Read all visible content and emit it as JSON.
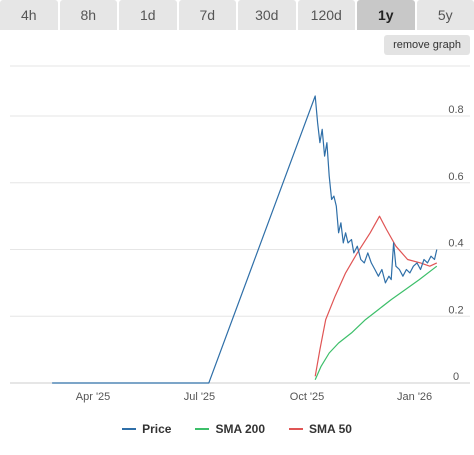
{
  "tabs": [
    {
      "label": "4h",
      "active": false
    },
    {
      "label": "8h",
      "active": false
    },
    {
      "label": "1d",
      "active": false
    },
    {
      "label": "7d",
      "active": false
    },
    {
      "label": "30d",
      "active": false
    },
    {
      "label": "120d",
      "active": false
    },
    {
      "label": "1y",
      "active": true
    },
    {
      "label": "5y",
      "active": false
    }
  ],
  "remove_graph_label": "remove graph",
  "chart_data": {
    "type": "line",
    "xlim": [
      "2025-01-20",
      "2026-01-21"
    ],
    "ylim": [
      0,
      0.95
    ],
    "x_ticks": [
      {
        "label": "Apr '25",
        "date": "2025-04-01"
      },
      {
        "label": "Jul '25",
        "date": "2025-07-01"
      },
      {
        "label": "Oct '25",
        "date": "2025-10-01"
      },
      {
        "label": "Jan '26",
        "date": "2026-01-01"
      }
    ],
    "y_ticks": [
      0,
      0.2,
      0.4,
      0.6,
      0.8
    ],
    "grid": true,
    "legend_position": "bottom",
    "series": [
      {
        "name": "Price",
        "color": "#2f6fa8",
        "points": [
          [
            "2025-02-25",
            0.0
          ],
          [
            "2025-05-01",
            0.0
          ],
          [
            "2025-07-09",
            0.0
          ],
          [
            "2025-10-08",
            0.86
          ],
          [
            "2025-10-10",
            0.78
          ],
          [
            "2025-10-12",
            0.72
          ],
          [
            "2025-10-14",
            0.76
          ],
          [
            "2025-10-16",
            0.68
          ],
          [
            "2025-10-18",
            0.72
          ],
          [
            "2025-10-20",
            0.62
          ],
          [
            "2025-10-22",
            0.55
          ],
          [
            "2025-10-24",
            0.56
          ],
          [
            "2025-10-26",
            0.53
          ],
          [
            "2025-10-28",
            0.45
          ],
          [
            "2025-10-30",
            0.48
          ],
          [
            "2025-11-01",
            0.42
          ],
          [
            "2025-11-03",
            0.45
          ],
          [
            "2025-11-05",
            0.42
          ],
          [
            "2025-11-08",
            0.43
          ],
          [
            "2025-11-10",
            0.39
          ],
          [
            "2025-11-13",
            0.41
          ],
          [
            "2025-11-16",
            0.37
          ],
          [
            "2025-11-19",
            0.36
          ],
          [
            "2025-11-22",
            0.39
          ],
          [
            "2025-11-25",
            0.36
          ],
          [
            "2025-11-28",
            0.34
          ],
          [
            "2025-12-01",
            0.32
          ],
          [
            "2025-12-04",
            0.34
          ],
          [
            "2025-12-07",
            0.3
          ],
          [
            "2025-12-10",
            0.32
          ],
          [
            "2025-12-12",
            0.31
          ],
          [
            "2025-12-14",
            0.42
          ],
          [
            "2025-12-16",
            0.35
          ],
          [
            "2025-12-19",
            0.34
          ],
          [
            "2025-12-22",
            0.32
          ],
          [
            "2025-12-25",
            0.34
          ],
          [
            "2025-12-28",
            0.33
          ],
          [
            "2025-12-31",
            0.35
          ],
          [
            "2026-01-03",
            0.36
          ],
          [
            "2026-01-06",
            0.34
          ],
          [
            "2026-01-09",
            0.37
          ],
          [
            "2026-01-12",
            0.36
          ],
          [
            "2026-01-15",
            0.38
          ],
          [
            "2026-01-18",
            0.37
          ],
          [
            "2026-01-20",
            0.4
          ]
        ]
      },
      {
        "name": "SMA 200",
        "color": "#3dbf6a",
        "points": [
          [
            "2025-10-08",
            0.01
          ],
          [
            "2025-10-13",
            0.05
          ],
          [
            "2025-10-20",
            0.09
          ],
          [
            "2025-10-28",
            0.12
          ],
          [
            "2025-11-08",
            0.15
          ],
          [
            "2025-11-20",
            0.19
          ],
          [
            "2025-12-01",
            0.22
          ],
          [
            "2025-12-12",
            0.25
          ],
          [
            "2025-12-24",
            0.28
          ],
          [
            "2026-01-05",
            0.31
          ],
          [
            "2026-01-20",
            0.35
          ]
        ]
      },
      {
        "name": "SMA 50",
        "color": "#e05555",
        "points": [
          [
            "2025-10-08",
            0.02
          ],
          [
            "2025-10-12",
            0.1
          ],
          [
            "2025-10-17",
            0.19
          ],
          [
            "2025-10-25",
            0.26
          ],
          [
            "2025-11-03",
            0.33
          ],
          [
            "2025-11-13",
            0.39
          ],
          [
            "2025-11-24",
            0.45
          ],
          [
            "2025-12-02",
            0.5
          ],
          [
            "2025-12-08",
            0.46
          ],
          [
            "2025-12-16",
            0.41
          ],
          [
            "2025-12-26",
            0.37
          ],
          [
            "2026-01-06",
            0.36
          ],
          [
            "2026-01-14",
            0.35
          ],
          [
            "2026-01-20",
            0.36
          ]
        ]
      }
    ]
  }
}
